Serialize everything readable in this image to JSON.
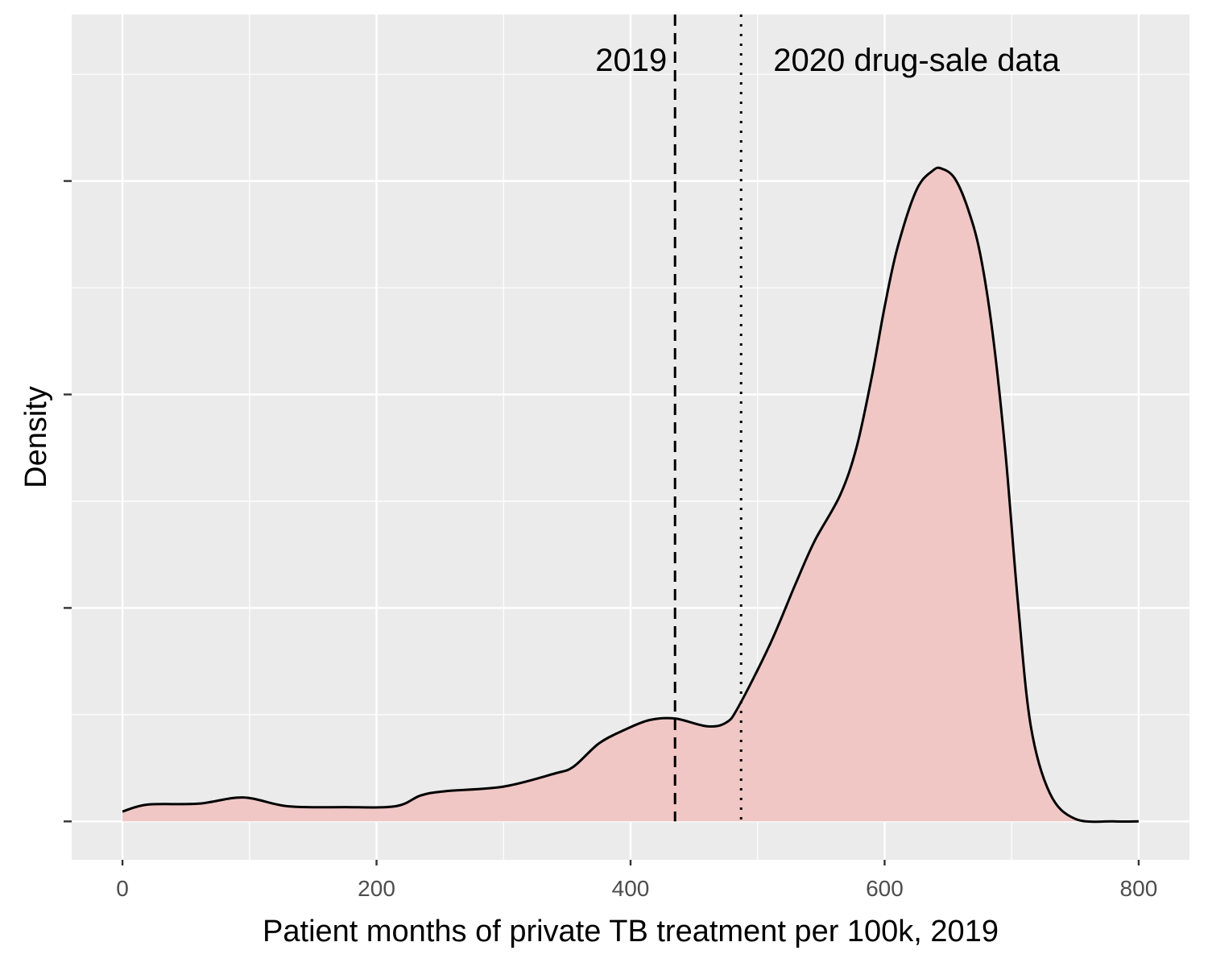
{
  "chart_data": {
    "type": "area",
    "xlabel": "Patient months of private TB treatment per 100k, 2019",
    "ylabel": "Density",
    "xlim": [
      -40,
      840
    ],
    "ylim": [
      -0.00018,
      0.00378
    ],
    "x_ticks": [
      0,
      200,
      400,
      600,
      800
    ],
    "x_tick_labels": [
      "0",
      "200",
      "400",
      "600",
      "800"
    ],
    "y_ticks": [
      0,
      0.001,
      0.002,
      0.003
    ],
    "y_tick_labels": [
      "",
      "",
      "",
      ""
    ],
    "grid": true,
    "colors": {
      "panel": "#ebebeb",
      "grid": "#ffffff",
      "fill": "#f0c7c5",
      "line": "#000000"
    },
    "series": [
      {
        "x": [
          0,
          20,
          60,
          95,
          130,
          175,
          215,
          235,
          255,
          300,
          340,
          355,
          375,
          395,
          415,
          435,
          460,
          475,
          485,
          510,
          530,
          545,
          565,
          578,
          590,
          600,
          610,
          625,
          638,
          645,
          655,
          665,
          675,
          685,
          695,
          705,
          715,
          730,
          750,
          780,
          800
        ],
        "y": [
          4.6e-05,
          7.9e-05,
          8.3e-05,
          0.000112,
          7.1e-05,
          6.7e-05,
          7.1e-05,
          0.000122,
          0.000142,
          0.000163,
          0.000224,
          0.000256,
          0.000365,
          0.000428,
          0.000475,
          0.000482,
          0.000446,
          0.000462,
          0.000538,
          0.000833,
          0.001114,
          0.001315,
          0.001529,
          0.001755,
          0.002086,
          0.002411,
          0.002685,
          0.002957,
          0.003049,
          0.003058,
          0.003014,
          0.00288,
          0.002665,
          0.002288,
          0.001734,
          0.001021,
          0.00045,
          0.000133,
          1.2e-05,
          0.0,
          0.0
        ]
      }
    ],
    "vlines": [
      {
        "x": 435,
        "style": "dashed",
        "label": "2019"
      },
      {
        "x": 487,
        "style": "dotted",
        "label": "2020 drug-sale data"
      }
    ]
  }
}
